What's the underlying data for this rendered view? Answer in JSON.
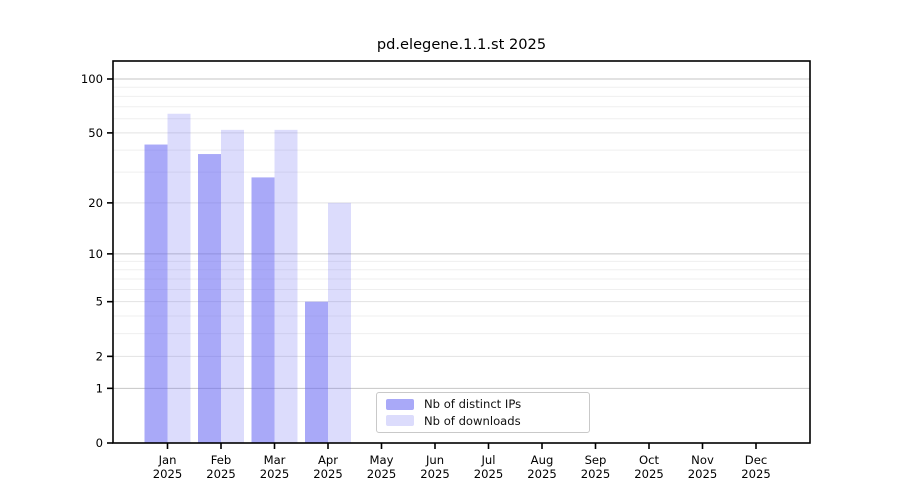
{
  "chart_data": {
    "type": "bar",
    "title": "pd.elegene.1.1.st 2025",
    "scale": "log1p",
    "categories": [
      "Jan",
      "Feb",
      "Mar",
      "Apr",
      "May",
      "Jun",
      "Jul",
      "Aug",
      "Sep",
      "Oct",
      "Nov",
      "Dec"
    ],
    "x_year": "2025",
    "series": [
      {
        "name": "Nb of distinct IPs",
        "color": "#6666f2",
        "alpha": 0.56,
        "values": [
          43,
          38,
          28,
          5,
          null,
          null,
          null,
          null,
          null,
          null,
          null,
          null
        ]
      },
      {
        "name": "Nb of downloads",
        "color": "#6666f2",
        "alpha": 0.23,
        "values": [
          64,
          52,
          52,
          20,
          null,
          null,
          null,
          null,
          null,
          null,
          null,
          null
        ]
      }
    ],
    "yticks": [
      0,
      1,
      2,
      5,
      10,
      20,
      50,
      100
    ],
    "ylim": [
      0,
      127
    ],
    "grid": true,
    "grid_major": [
      1,
      10,
      100
    ],
    "grid_mid": [
      2,
      5,
      20,
      50
    ],
    "grid_minor": [
      3,
      4,
      6,
      7,
      8,
      9,
      30,
      40,
      60,
      70,
      80,
      90
    ],
    "legend_position": "inside-bottom-center",
    "colors": {
      "axis": "#000000",
      "grid_major": "#c6c6c6",
      "grid_mid": "#e3e3e3",
      "grid_minor": "#efefef",
      "tick_text": "#000000"
    }
  }
}
